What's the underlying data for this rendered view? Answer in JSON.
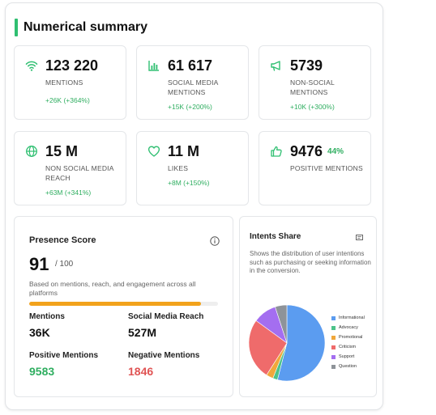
{
  "summary": {
    "title": "Numerical summary",
    "accent": "#2fbf71",
    "cards": [
      {
        "icon": "wifi-icon",
        "value": "123 220",
        "label": "MENTIONS",
        "delta": "+26K (+364%)"
      },
      {
        "icon": "bar-chart-icon",
        "value": "61 617",
        "label": "SOCIAL MEDIA MENTIONS",
        "delta": "+15K (+200%)"
      },
      {
        "icon": "megaphone-icon",
        "value": "5739",
        "label": "NON-SOCIAL MENTIONS",
        "delta": "+10K (+300%)"
      },
      {
        "icon": "globe-icon",
        "value": "15 M",
        "label": "NON SOCIAL MEDIA REACH",
        "delta": "+63M (+341%)"
      },
      {
        "icon": "heart-icon",
        "value": "11 M",
        "label": "LIKES",
        "delta": "+8M (+150%)"
      },
      {
        "icon": "thumbs-up-icon",
        "value": "9476",
        "percent": "44%",
        "label": "POSITIVE MENTIONS",
        "delta": ""
      }
    ]
  },
  "presence": {
    "title": "Presence Score",
    "score": "91",
    "max": "/ 100",
    "score_fraction": 0.91,
    "description": "Based on mentions, reach, and engagement across all platforms",
    "bar_color": "#f2a21b",
    "metrics": [
      {
        "label": "Mentions",
        "value": "36K",
        "tone": "neutral"
      },
      {
        "label": "Social Media Reach",
        "value": "527M",
        "tone": "neutral"
      },
      {
        "label": "Positive Mentions",
        "value": "9583",
        "tone": "positive"
      },
      {
        "label": "Negative Mentions",
        "value": "1846",
        "tone": "negative"
      }
    ]
  },
  "intents": {
    "title": "Intents Share",
    "description": "Shows the distribution of user intentions such as purchasing or seeking information in the conversion.",
    "segments": [
      {
        "name": "Informational",
        "value": 54,
        "color": "#5b9cf0"
      },
      {
        "name": "Advocacy",
        "value": 2,
        "color": "#4cc38a"
      },
      {
        "name": "Promotional",
        "value": 3,
        "color": "#f0a73b"
      },
      {
        "name": "Criticism",
        "value": 26,
        "color": "#ef6b6b"
      },
      {
        "name": "Support",
        "value": 10,
        "color": "#a46ef0"
      },
      {
        "name": "Question",
        "value": 5,
        "color": "#8e9399"
      }
    ]
  }
}
